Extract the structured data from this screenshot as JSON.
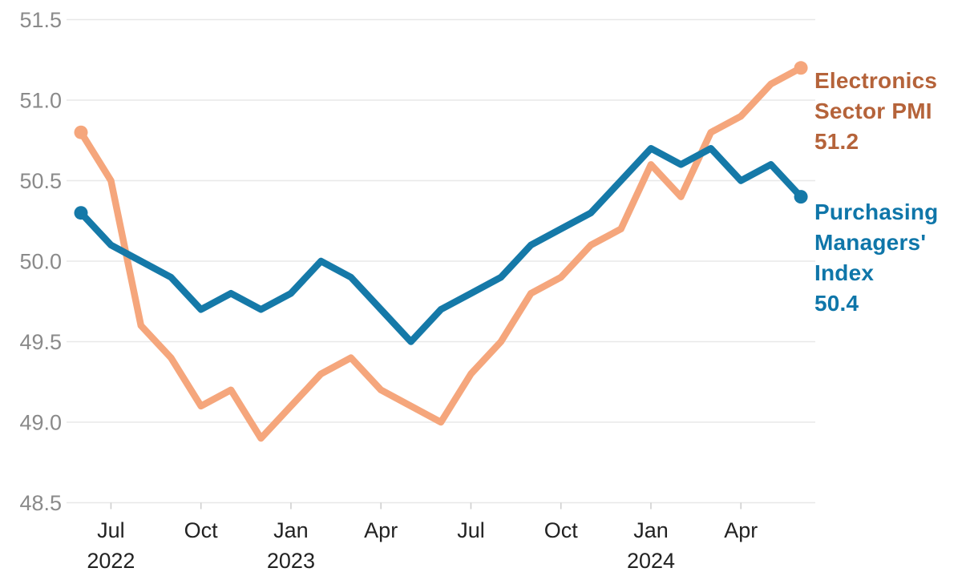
{
  "chart_data": {
    "type": "line",
    "x": [
      "Jun 2022",
      "Jul 2022",
      "Aug 2022",
      "Sep 2022",
      "Oct 2022",
      "Nov 2022",
      "Dec 2022",
      "Jan 2023",
      "Feb 2023",
      "Mar 2023",
      "Apr 2023",
      "May 2023",
      "Jun 2023",
      "Jul 2023",
      "Aug 2023",
      "Sep 2023",
      "Oct 2023",
      "Nov 2023",
      "Dec 2023",
      "Jan 2024",
      "Feb 2024",
      "Mar 2024",
      "Apr 2024",
      "May 2024",
      "Jun 2024"
    ],
    "x_ticks": [
      {
        "index": 1,
        "label": "Jul",
        "year": "2022"
      },
      {
        "index": 4,
        "label": "Oct",
        "year": ""
      },
      {
        "index": 7,
        "label": "Jan",
        "year": "2023"
      },
      {
        "index": 10,
        "label": "Apr",
        "year": ""
      },
      {
        "index": 13,
        "label": "Jul",
        "year": ""
      },
      {
        "index": 16,
        "label": "Oct",
        "year": ""
      },
      {
        "index": 19,
        "label": "Jan",
        "year": "2024"
      },
      {
        "index": 22,
        "label": "Apr",
        "year": ""
      }
    ],
    "yticks": [
      51.5,
      51.0,
      50.5,
      50.0,
      49.5,
      49.0,
      48.5
    ],
    "ylim": [
      48.5,
      51.5
    ],
    "grid": true,
    "legend_position": "right",
    "series": [
      {
        "name": "Electronics Sector PMI",
        "color": "#f5a67c",
        "label_color": "#b5633a",
        "label_lines": [
          "Electronics",
          "Sector PMI"
        ],
        "end_value_label": "51.2",
        "values": [
          50.8,
          50.5,
          49.6,
          49.4,
          49.1,
          49.2,
          48.9,
          49.1,
          49.3,
          49.4,
          49.2,
          49.1,
          49.0,
          49.3,
          49.5,
          49.8,
          49.9,
          50.1,
          50.2,
          50.6,
          50.4,
          50.8,
          50.9,
          51.1,
          51.2
        ]
      },
      {
        "name": "Purchasing Managers' Index",
        "color": "#1579a8",
        "label_color": "#0f76a9",
        "label_lines": [
          "Purchasing",
          "Managers'",
          "Index"
        ],
        "end_value_label": "50.4",
        "values": [
          50.3,
          50.1,
          50.0,
          49.9,
          49.7,
          49.8,
          49.7,
          49.8,
          50.0,
          49.9,
          49.7,
          49.5,
          49.7,
          49.8,
          49.9,
          50.1,
          50.2,
          50.3,
          50.5,
          50.7,
          50.6,
          50.7,
          50.5,
          50.6,
          50.4
        ]
      }
    ],
    "colors": {
      "grid_line": "#e8e8e8",
      "tick_mark": "#cfcfcf",
      "y_tick_label": "#8a8a8a",
      "x_tick_label": "#222222",
      "background": "#ffffff"
    }
  }
}
